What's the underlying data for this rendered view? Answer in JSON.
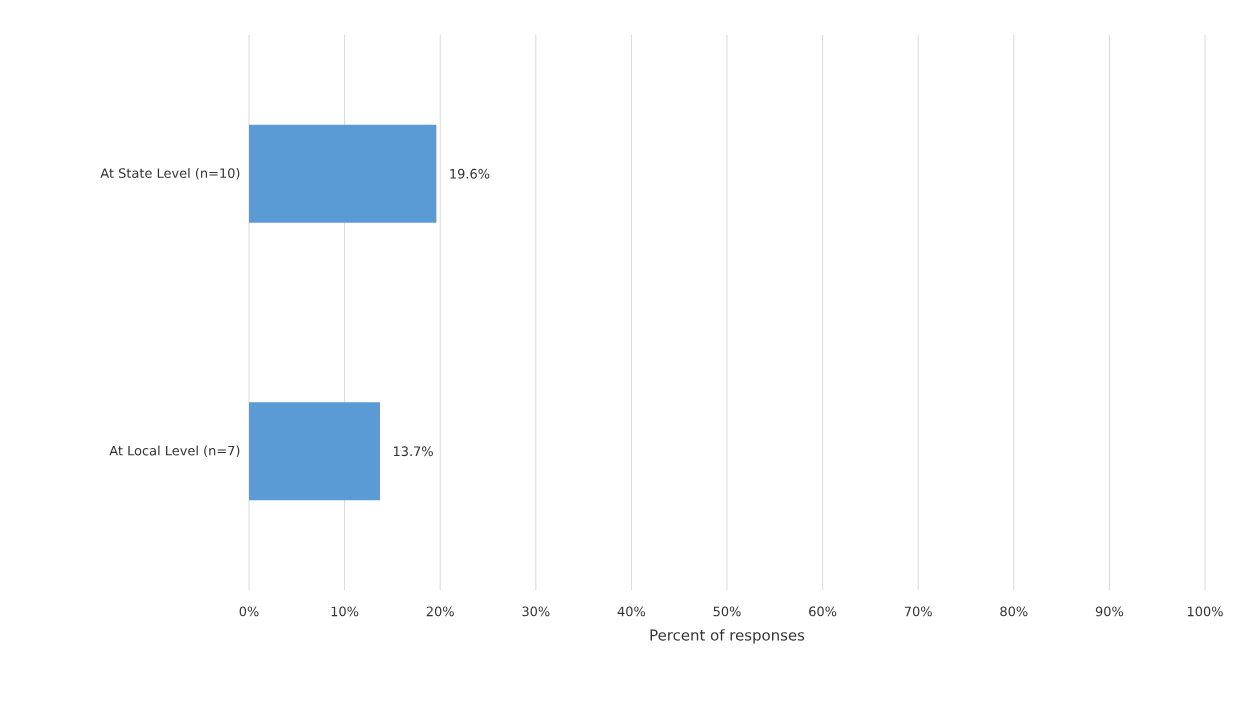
{
  "chart_data": {
    "type": "bar",
    "orientation": "horizontal",
    "categories": [
      "At State Level (n=10)",
      "At Local Level (n=7)"
    ],
    "values": [
      19.6,
      13.7
    ],
    "color": "#5b9bd5",
    "value_labels": [
      "19.6%",
      "13.7%"
    ],
    "xlabel": "Percent of responses",
    "xlim": [
      0,
      100
    ],
    "xticks": [
      {
        "value": 0,
        "label": "0%"
      },
      {
        "value": 10,
        "label": "10%"
      },
      {
        "value": 20,
        "label": "20%"
      },
      {
        "value": 30,
        "label": "30%"
      },
      {
        "value": 40,
        "label": "40%"
      },
      {
        "value": 50,
        "label": "50%"
      },
      {
        "value": 60,
        "label": "60%"
      },
      {
        "value": 70,
        "label": "70%"
      },
      {
        "value": 80,
        "label": "80%"
      },
      {
        "value": 90,
        "label": "90%"
      },
      {
        "value": 100,
        "label": "100%"
      }
    ],
    "grid": "x"
  }
}
